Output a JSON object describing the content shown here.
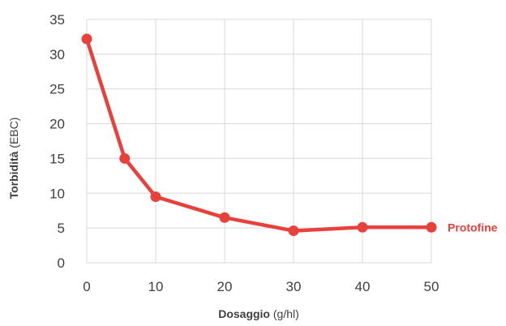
{
  "chart_data": {
    "type": "line",
    "title": "",
    "xlabel": {
      "bold": "Dosaggio",
      "rest": " (g/hl)"
    },
    "ylabel": {
      "bold": "Torbidità",
      "rest": " (EBC)"
    },
    "xlim": [
      0,
      50
    ],
    "ylim": [
      0,
      35
    ],
    "xticks": [
      0,
      10,
      20,
      30,
      40,
      50
    ],
    "yticks": [
      0,
      5,
      10,
      15,
      20,
      25,
      30,
      35
    ],
    "grid": true,
    "series": [
      {
        "name": "Protofine",
        "color": "#e8403a",
        "x": [
          0,
          5.5,
          10,
          20,
          30,
          40,
          50
        ],
        "y": [
          32.2,
          15.0,
          9.5,
          6.5,
          4.6,
          5.1,
          5.1
        ]
      }
    ]
  }
}
